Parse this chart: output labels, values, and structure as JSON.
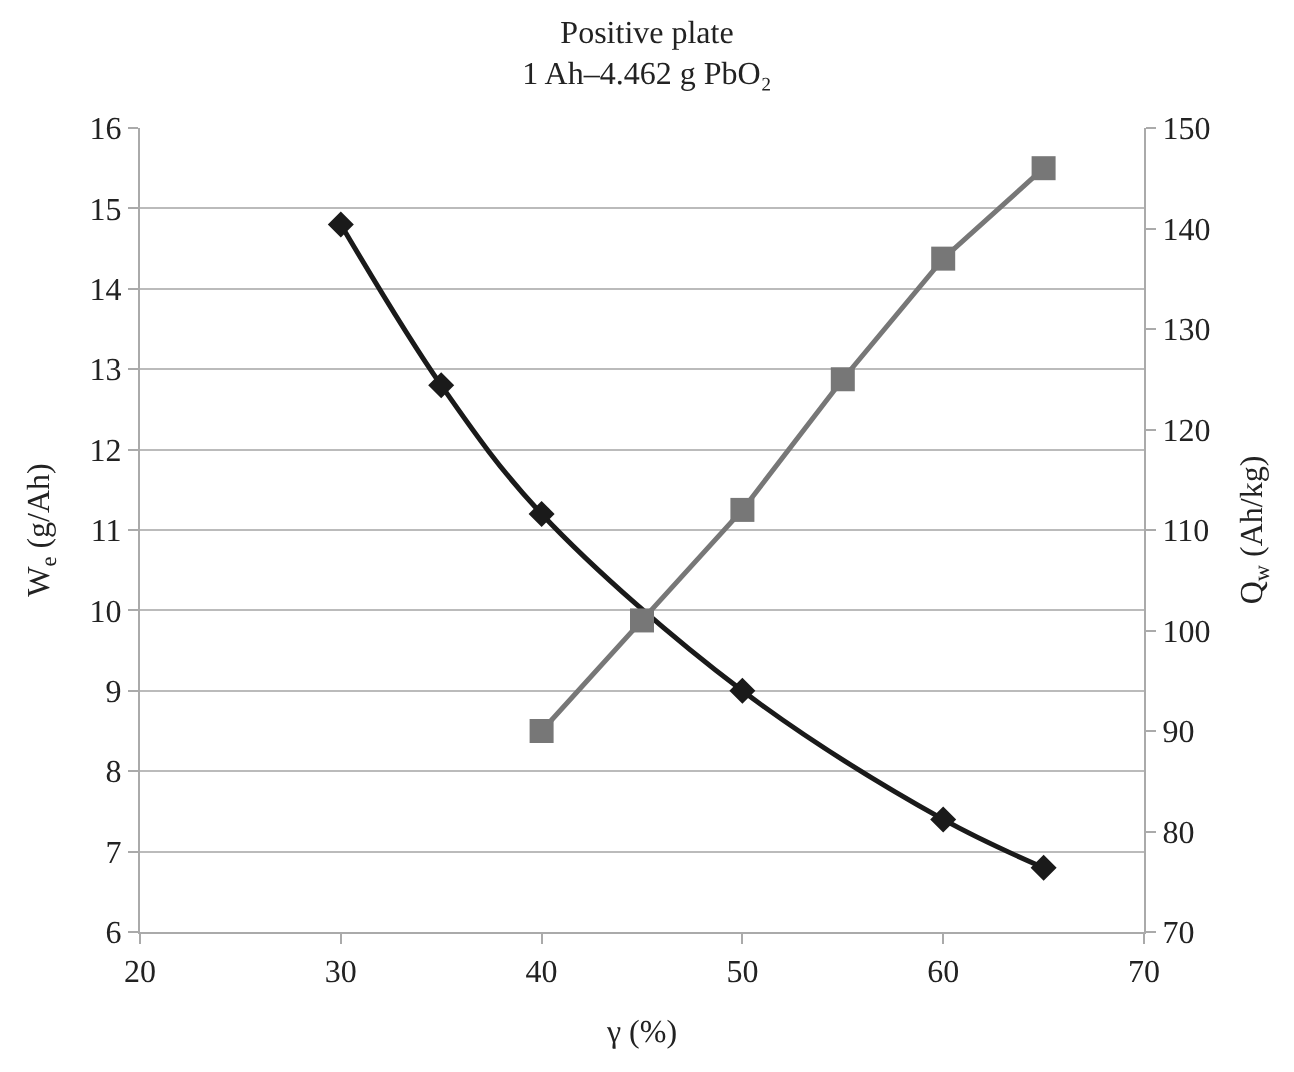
{
  "chart_data": {
    "type": "line",
    "title": "Positive plate",
    "subtitle": "1 Ah–4.462 g PbO₂",
    "xlabel": "γ (%)",
    "ylabel": "W$_{e}$ (g/Ah)",
    "y2label": "Q$_{w}$ (Ah/kg)",
    "xlim": [
      20,
      70
    ],
    "xticks": [
      20,
      30,
      40,
      50,
      60,
      70
    ],
    "ylim": [
      6,
      16
    ],
    "yticks": [
      6,
      7,
      8,
      9,
      10,
      11,
      12,
      13,
      14,
      15,
      16
    ],
    "y2lim": [
      70,
      150
    ],
    "y2ticks": [
      70,
      80,
      90,
      100,
      110,
      120,
      130,
      140,
      150
    ],
    "grid": "y",
    "series": [
      {
        "color": "#1a1a1a",
        "marker": "diamond",
        "x": [
          30,
          35,
          40,
          50,
          60,
          65
        ],
        "values": [
          14.8,
          12.8,
          11.2,
          9.0,
          7.4,
          6.8
        ]
      },
      {
        "color": "#777777",
        "marker": "square",
        "axis": "y2",
        "x": [
          40,
          45,
          50,
          55,
          60,
          65
        ],
        "values": [
          90,
          101,
          112,
          125,
          137,
          146
        ]
      }
    ]
  }
}
